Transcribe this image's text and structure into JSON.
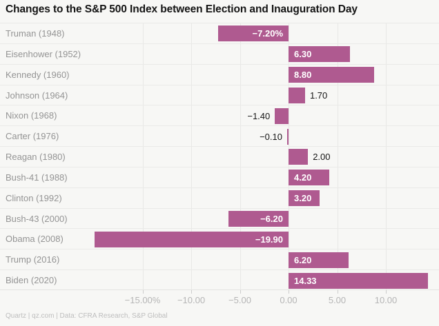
{
  "title": "Changes to the S&P 500 Index between Election and Inauguration Day",
  "footer": "Quartz | qz.com | Data: CFRA Research, S&P Global",
  "colors": {
    "bar": "#af5a90",
    "background": "#f7f7f5",
    "gridline": "#e8e8e6",
    "row_separator": "#eaeae8",
    "category_label": "#949494",
    "axis_label": "#b5b5b5",
    "title_text": "#141414",
    "value_label_inside": "#ffffff",
    "value_label_outside": "#141414",
    "footer_text": "#bdbdbd"
  },
  "chart_data": {
    "type": "bar",
    "orientation": "horizontal",
    "title": "Changes to the S&P 500 Index between Election and Inauguration Day",
    "xlabel": "",
    "ylabel": "",
    "categories": [
      "Truman (1948)",
      "Eisenhower (1952)",
      "Kennedy (1960)",
      "Johnson (1964)",
      "Nixon (1968)",
      "Carter (1976)",
      "Reagan (1980)",
      "Bush-41 (1988)",
      "Clinton (1992)",
      "Bush-43 (2000)",
      "Obama (2008)",
      "Trump (2016)",
      "Biden (2020)"
    ],
    "values": [
      -7.2,
      6.3,
      8.8,
      1.7,
      -1.4,
      -0.1,
      2.0,
      4.2,
      3.2,
      -6.2,
      -19.9,
      6.2,
      14.33
    ],
    "value_labels": [
      "−7.20%",
      "6.30",
      "8.80",
      "1.70",
      "−1.40",
      "−0.10",
      "2.00",
      "4.20",
      "3.20",
      "−6.20",
      "−19.90",
      "6.20",
      "14.33"
    ],
    "x_ticks": [
      {
        "value": -15,
        "label": "−15.00%"
      },
      {
        "value": -10,
        "label": "−10.00"
      },
      {
        "value": -5,
        "label": "−5.00"
      },
      {
        "value": 0,
        "label": "0.00"
      },
      {
        "value": 5,
        "label": "5.00"
      },
      {
        "value": 10,
        "label": "10.00"
      }
    ],
    "xlim": [
      -19.9,
      15.5
    ],
    "grid": "on",
    "legend": "none",
    "value_label_unit_on_first": "%"
  }
}
